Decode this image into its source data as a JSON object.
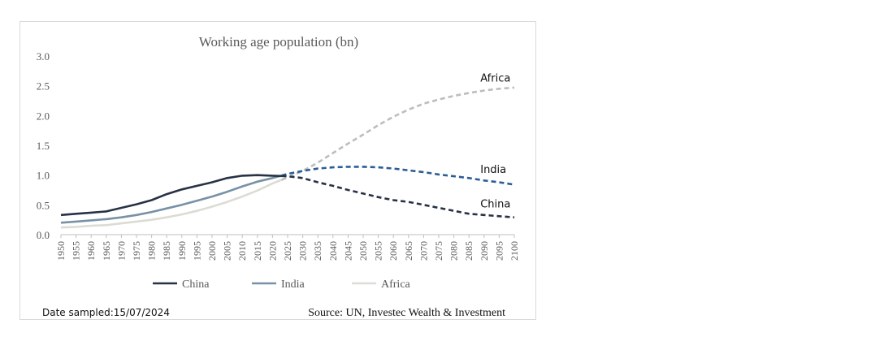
{
  "chart_data": {
    "type": "line",
    "title": "Working age population (bn)",
    "xlabel": "",
    "ylabel": "",
    "ylim": [
      0,
      3.0
    ],
    "yticks": [
      "0.0",
      "0.5",
      "1.0",
      "1.5",
      "2.0",
      "2.5",
      "3.0"
    ],
    "x": [
      1950,
      1955,
      1960,
      1965,
      1970,
      1975,
      1980,
      1985,
      1990,
      1995,
      2000,
      2005,
      2010,
      2015,
      2020,
      2025,
      2030,
      2035,
      2040,
      2045,
      2050,
      2055,
      2060,
      2065,
      2070,
      2075,
      2080,
      2085,
      2090,
      2095,
      2100
    ],
    "projection_start": 2023,
    "grid": false,
    "legend_position": "bottom",
    "series": [
      {
        "name": "China",
        "color": "#273244",
        "end_label": "China",
        "values": [
          0.33,
          0.35,
          0.37,
          0.39,
          0.45,
          0.51,
          0.58,
          0.68,
          0.76,
          0.82,
          0.88,
          0.95,
          0.99,
          1.0,
          0.99,
          0.98,
          0.95,
          0.88,
          0.82,
          0.75,
          0.69,
          0.63,
          0.58,
          0.55,
          0.5,
          0.45,
          0.4,
          0.35,
          0.33,
          0.31,
          0.29
        ]
      },
      {
        "name": "India",
        "color": "#7891a6",
        "dash_color": "#2b5d95",
        "end_label": "India",
        "values": [
          0.2,
          0.22,
          0.24,
          0.26,
          0.29,
          0.33,
          0.38,
          0.44,
          0.5,
          0.57,
          0.64,
          0.72,
          0.81,
          0.89,
          0.95,
          1.02,
          1.07,
          1.11,
          1.13,
          1.14,
          1.14,
          1.13,
          1.11,
          1.08,
          1.05,
          1.01,
          0.98,
          0.95,
          0.91,
          0.88,
          0.84
        ]
      },
      {
        "name": "Africa",
        "color": "#dcdcd4",
        "dash_color": "#bdbdbd",
        "end_label": "Africa",
        "values": [
          0.12,
          0.13,
          0.15,
          0.16,
          0.19,
          0.22,
          0.25,
          0.29,
          0.34,
          0.4,
          0.47,
          0.55,
          0.64,
          0.74,
          0.86,
          0.96,
          1.07,
          1.21,
          1.37,
          1.53,
          1.68,
          1.84,
          1.98,
          2.1,
          2.2,
          2.27,
          2.33,
          2.38,
          2.42,
          2.45,
          2.47
        ]
      }
    ],
    "legend": [
      "China",
      "India",
      "Africa"
    ]
  },
  "footer": {
    "date_sampled": "Date sampled:15/07/2024",
    "source": "Source: UN, Investec Wealth & Investment"
  }
}
